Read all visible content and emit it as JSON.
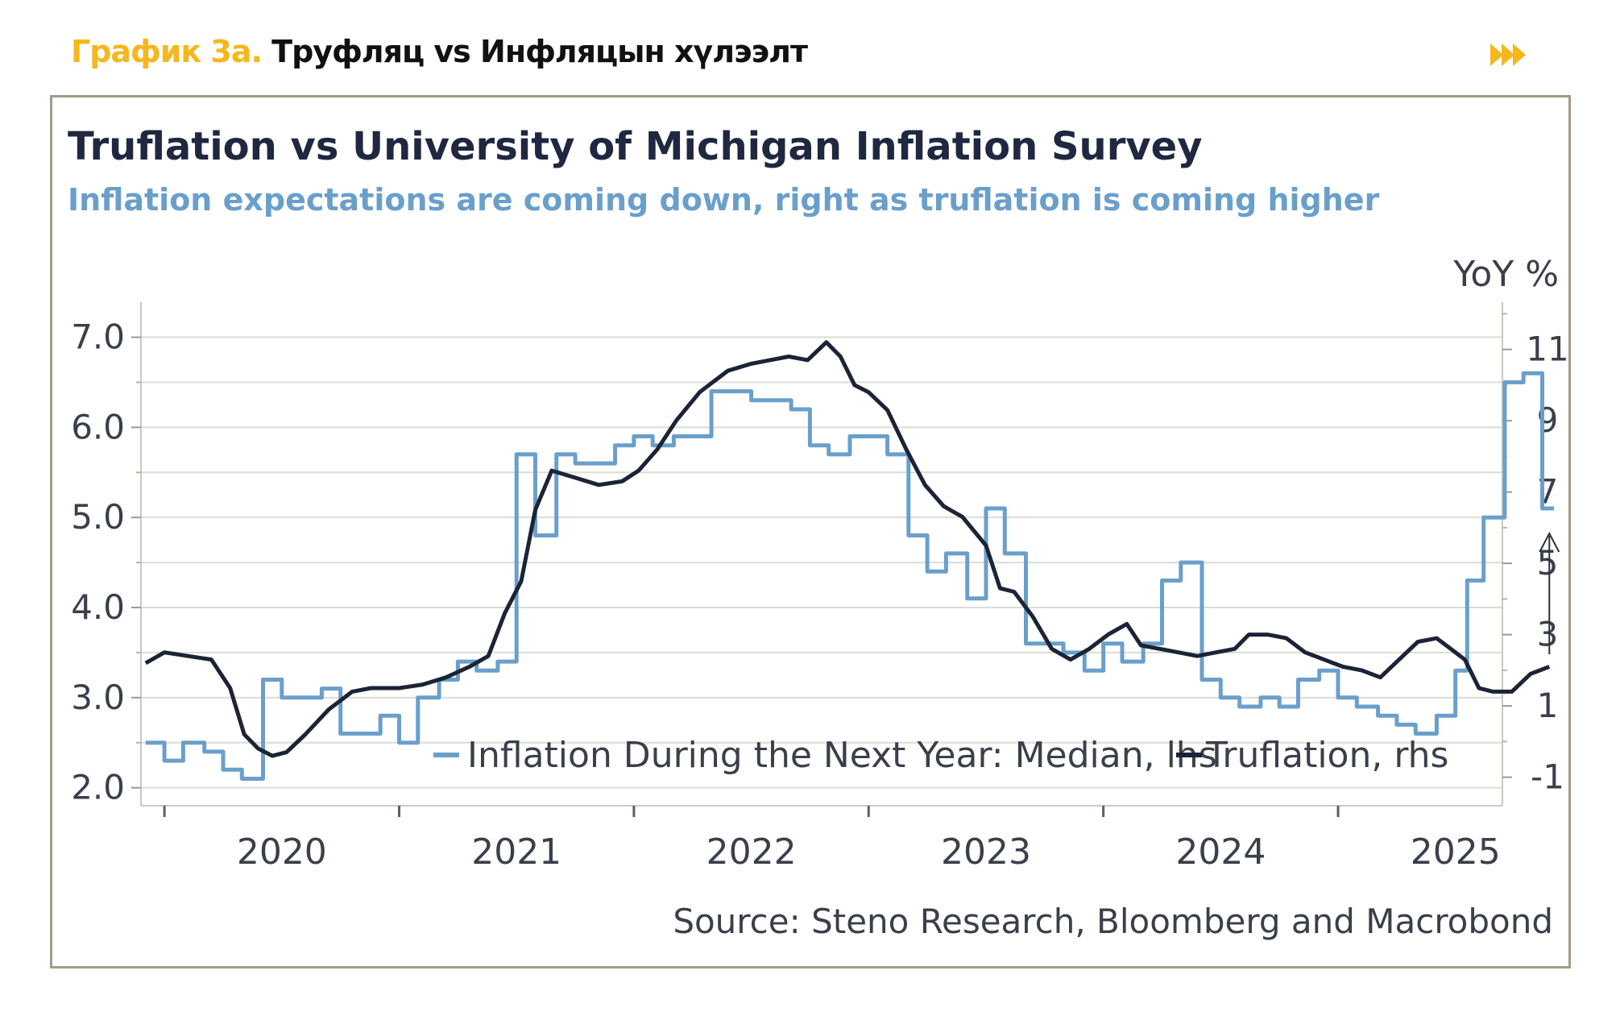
{
  "header": {
    "caption_lead": "График 3а.",
    "caption_rest": "Труфляц vs Инфляцын хүлээлт",
    "forward_icon": "double-chevron-right-icon",
    "accent_color": "#f5b71c"
  },
  "chart_data": {
    "type": "line",
    "title": "Truflation vs University of Michigan Inflation Survey",
    "subtitle": "Inflation expectations are coming down, right as truflation is coming higher",
    "right_axis_unit": "YoY %",
    "source": "Source: Steno Research, Bloomberg and Macrobond",
    "x_ticks": [
      "2020",
      "2021",
      "2022",
      "2023",
      "2024",
      "2025"
    ],
    "xlim": [
      2019.4,
      2025.2
    ],
    "y_left": {
      "ticks": [
        "7.0",
        "6.0",
        "5.0",
        "4.0",
        "3.0",
        "2.0"
      ],
      "ylim": [
        1.8,
        7.3
      ]
    },
    "y_right": {
      "ticks": [
        "11",
        "9",
        "7",
        "5",
        "3",
        "1",
        "-1"
      ],
      "ylim": [
        -1.8,
        12.1
      ]
    },
    "grid": true,
    "legend": [
      "Inflation During the Next Year: Median, lhs",
      "Truflation, rhs"
    ],
    "annotation": "up-arrow",
    "series": [
      {
        "name": "Inflation During the Next Year: Median, lhs",
        "axis": "left",
        "color": "#6a9fcb",
        "style": "step",
        "points": [
          [
            2019.42,
            2.5
          ],
          [
            2019.5,
            2.3
          ],
          [
            2019.58,
            2.5
          ],
          [
            2019.67,
            2.4
          ],
          [
            2019.75,
            2.2
          ],
          [
            2019.83,
            2.1
          ],
          [
            2019.92,
            3.2
          ],
          [
            2020.0,
            3.0
          ],
          [
            2020.17,
            3.1
          ],
          [
            2020.25,
            2.6
          ],
          [
            2020.42,
            2.8
          ],
          [
            2020.5,
            2.5
          ],
          [
            2020.58,
            3.0
          ],
          [
            2020.67,
            3.2
          ],
          [
            2020.75,
            3.4
          ],
          [
            2020.83,
            3.3
          ],
          [
            2020.92,
            3.4
          ],
          [
            2021.0,
            5.7
          ],
          [
            2021.08,
            4.8
          ],
          [
            2021.17,
            5.7
          ],
          [
            2021.25,
            5.6
          ],
          [
            2021.42,
            5.8
          ],
          [
            2021.5,
            5.9
          ],
          [
            2021.58,
            5.8
          ],
          [
            2021.67,
            5.9
          ],
          [
            2021.83,
            6.4
          ],
          [
            2022.0,
            6.3
          ],
          [
            2022.17,
            6.2
          ],
          [
            2022.25,
            5.8
          ],
          [
            2022.33,
            5.7
          ],
          [
            2022.42,
            5.9
          ],
          [
            2022.5,
            5.9
          ],
          [
            2022.58,
            5.7
          ],
          [
            2022.67,
            4.8
          ],
          [
            2022.75,
            4.4
          ],
          [
            2022.83,
            4.6
          ],
          [
            2022.92,
            4.1
          ],
          [
            2023.0,
            5.1
          ],
          [
            2023.08,
            4.6
          ],
          [
            2023.17,
            3.6
          ],
          [
            2023.25,
            3.6
          ],
          [
            2023.33,
            3.5
          ],
          [
            2023.42,
            3.3
          ],
          [
            2023.5,
            3.6
          ],
          [
            2023.58,
            3.4
          ],
          [
            2023.67,
            3.6
          ],
          [
            2023.75,
            4.3
          ],
          [
            2023.83,
            4.5
          ],
          [
            2023.92,
            3.2
          ],
          [
            2024.0,
            3.0
          ],
          [
            2024.08,
            2.9
          ],
          [
            2024.17,
            3.0
          ],
          [
            2024.25,
            2.9
          ],
          [
            2024.33,
            3.2
          ],
          [
            2024.42,
            3.3
          ],
          [
            2024.5,
            3.0
          ],
          [
            2024.58,
            2.9
          ],
          [
            2024.67,
            2.8
          ],
          [
            2024.75,
            2.7
          ],
          [
            2024.83,
            2.6
          ],
          [
            2024.92,
            2.8
          ],
          [
            2025.0,
            3.3
          ],
          [
            2025.05,
            4.3
          ],
          [
            2025.12,
            5.0
          ],
          [
            2025.21,
            6.5
          ],
          [
            2025.29,
            6.6
          ],
          [
            2025.37,
            5.1
          ],
          [
            2025.42,
            5.1
          ]
        ]
      },
      {
        "name": "Truflation, rhs",
        "axis": "right",
        "color": "#1c2336",
        "style": "line",
        "points": [
          [
            2019.42,
            2.2
          ],
          [
            2019.5,
            2.5
          ],
          [
            2019.6,
            2.4
          ],
          [
            2019.7,
            2.3
          ],
          [
            2019.78,
            1.5
          ],
          [
            2019.84,
            0.2
          ],
          [
            2019.9,
            -0.2
          ],
          [
            2019.96,
            -0.4
          ],
          [
            2020.02,
            -0.3
          ],
          [
            2020.1,
            0.2
          ],
          [
            2020.2,
            0.9
          ],
          [
            2020.3,
            1.4
          ],
          [
            2020.38,
            1.5
          ],
          [
            2020.5,
            1.5
          ],
          [
            2020.6,
            1.6
          ],
          [
            2020.7,
            1.8
          ],
          [
            2020.8,
            2.1
          ],
          [
            2020.88,
            2.4
          ],
          [
            2020.95,
            3.6
          ],
          [
            2021.02,
            4.5
          ],
          [
            2021.08,
            6.5
          ],
          [
            2021.15,
            7.6
          ],
          [
            2021.25,
            7.4
          ],
          [
            2021.35,
            7.2
          ],
          [
            2021.45,
            7.3
          ],
          [
            2021.52,
            7.6
          ],
          [
            2021.6,
            8.2
          ],
          [
            2021.68,
            9.0
          ],
          [
            2021.78,
            9.8
          ],
          [
            2021.9,
            10.4
          ],
          [
            2022.0,
            10.6
          ],
          [
            2022.08,
            10.7
          ],
          [
            2022.16,
            10.8
          ],
          [
            2022.24,
            10.7
          ],
          [
            2022.32,
            11.2
          ],
          [
            2022.38,
            10.8
          ],
          [
            2022.44,
            10.0
          ],
          [
            2022.5,
            9.8
          ],
          [
            2022.58,
            9.3
          ],
          [
            2022.66,
            8.2
          ],
          [
            2022.74,
            7.2
          ],
          [
            2022.82,
            6.6
          ],
          [
            2022.9,
            6.3
          ],
          [
            2023.0,
            5.5
          ],
          [
            2023.06,
            4.3
          ],
          [
            2023.12,
            4.2
          ],
          [
            2023.2,
            3.5
          ],
          [
            2023.28,
            2.6
          ],
          [
            2023.36,
            2.3
          ],
          [
            2023.44,
            2.6
          ],
          [
            2023.52,
            3.0
          ],
          [
            2023.6,
            3.3
          ],
          [
            2023.66,
            2.7
          ],
          [
            2023.74,
            2.6
          ],
          [
            2023.82,
            2.5
          ],
          [
            2023.9,
            2.4
          ],
          [
            2023.98,
            2.5
          ],
          [
            2024.06,
            2.6
          ],
          [
            2024.12,
            3.0
          ],
          [
            2024.2,
            3.0
          ],
          [
            2024.28,
            2.9
          ],
          [
            2024.36,
            2.5
          ],
          [
            2024.44,
            2.3
          ],
          [
            2024.52,
            2.1
          ],
          [
            2024.6,
            2.0
          ],
          [
            2024.68,
            1.8
          ],
          [
            2024.76,
            2.3
          ],
          [
            2024.84,
            2.8
          ],
          [
            2024.92,
            2.9
          ],
          [
            2024.98,
            2.6
          ],
          [
            2025.04,
            2.3
          ],
          [
            2025.1,
            1.5
          ],
          [
            2025.16,
            1.4
          ],
          [
            2025.24,
            1.4
          ],
          [
            2025.32,
            1.9
          ],
          [
            2025.4,
            2.1
          ]
        ]
      }
    ]
  }
}
